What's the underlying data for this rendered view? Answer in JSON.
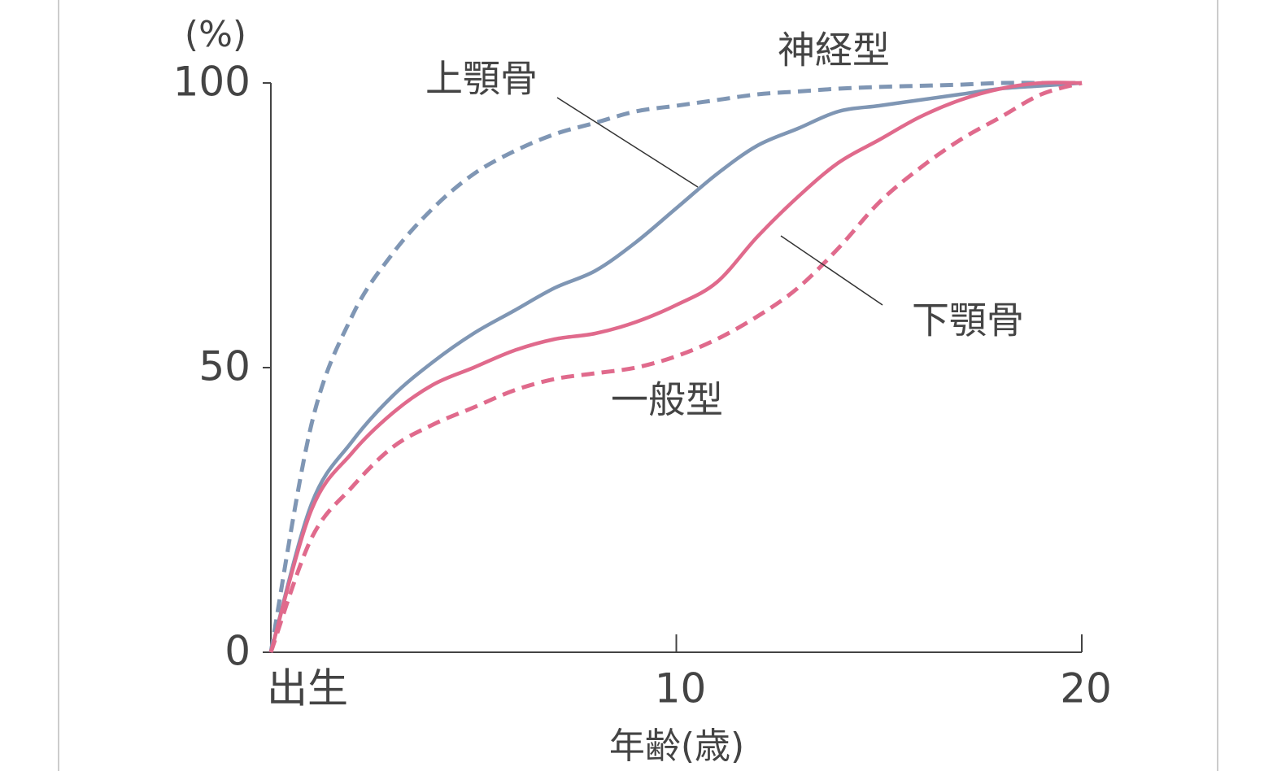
{
  "chart_data": {
    "type": "line",
    "y_unit_label": "(%)",
    "x_label": "年齢(歳)",
    "x": [
      0,
      1,
      2,
      3,
      4,
      5,
      6,
      7,
      8,
      9,
      10,
      11,
      12,
      13,
      14,
      15,
      16,
      17,
      18,
      19,
      20
    ],
    "series": [
      {
        "name": "神経型",
        "color": "#7f96b4",
        "dashed": true,
        "values": [
          0,
          40,
          59,
          70,
          78,
          84,
          88,
          91,
          93,
          95,
          96,
          97,
          98,
          98.5,
          99,
          99.3,
          99.5,
          99.7,
          100,
          100,
          100
        ]
      },
      {
        "name": "上顎骨",
        "color": "#7f96b4",
        "dashed": false,
        "values": [
          0,
          26,
          37,
          45,
          51,
          56,
          60,
          64,
          67,
          72,
          78,
          84,
          89,
          92,
          95,
          96,
          97,
          98,
          99,
          99.5,
          100
        ]
      },
      {
        "name": "下顎骨",
        "color": "#e06a8c",
        "dashed": false,
        "values": [
          0,
          25,
          35,
          42,
          47,
          50,
          53,
          55,
          56,
          58,
          61,
          65,
          73,
          80,
          86,
          90,
          94,
          97,
          99,
          100,
          100
        ]
      },
      {
        "name": "一般型",
        "color": "#e06a8c",
        "dashed": true,
        "values": [
          0,
          20,
          29,
          36,
          40,
          43,
          46,
          48,
          49,
          50,
          52,
          55,
          59,
          64,
          71,
          79,
          85,
          90,
          94,
          98,
          100
        ]
      }
    ],
    "xlim": [
      0,
      20
    ],
    "xticks": [
      {
        "value": 0,
        "label": "出生"
      },
      10,
      20
    ],
    "ylim": [
      0,
      100
    ],
    "yticks": [
      0,
      50,
      100
    ]
  }
}
